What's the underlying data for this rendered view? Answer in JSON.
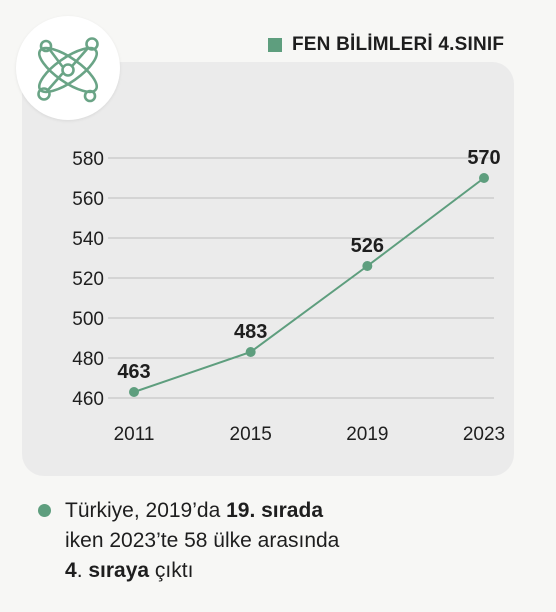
{
  "colors": {
    "accent": "#5e9e7e",
    "icon_stroke": "#6aa486",
    "gridline": "#bdbdbd",
    "text": "#1e1e1e"
  },
  "badge": {
    "icon": "atom-molecule-icon"
  },
  "chart_data": {
    "type": "line",
    "title": "",
    "xlabel": "",
    "ylabel": "",
    "categories": [
      "2011",
      "2015",
      "2019",
      "2023"
    ],
    "series": [
      {
        "name": "FEN BİLİMLERİ 4.SINIF",
        "values": [
          463,
          483,
          526,
          570
        ]
      }
    ],
    "yticks": [
      460,
      480,
      500,
      520,
      540,
      560,
      580
    ],
    "ylim": [
      460,
      580
    ],
    "grid": true,
    "legend_position": "top-right"
  },
  "note": {
    "line1_pre": "Türkiye, 2019’da ",
    "line1_bold": "19. sırada",
    "line2": "iken 2023’te 58 ülke arasında",
    "line3_bold1": "4",
    "line3_mid": ". ",
    "line3_bold2": "sıraya",
    "line3_post": " çıktı"
  }
}
